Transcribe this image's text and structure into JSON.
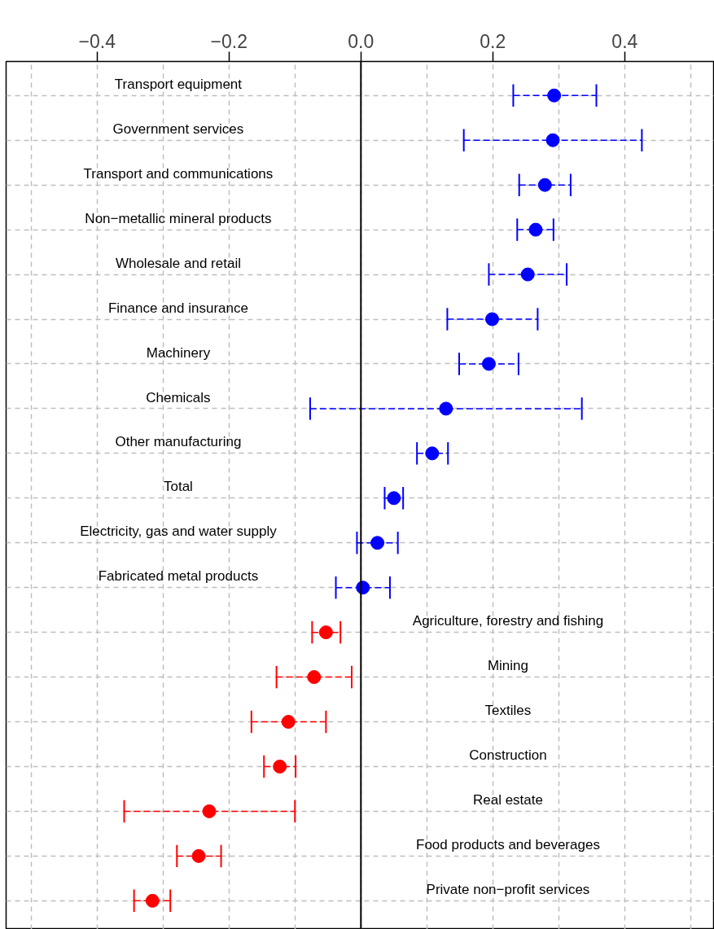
{
  "chart_data": {
    "type": "scatter",
    "orientation": "horizontal",
    "marker": "circle",
    "categories": [
      "Transport equipment",
      "Government services",
      "Transport and communications",
      "Non−metallic mineral products",
      "Wholesale and retail",
      "Finance and insurance",
      "Machinery",
      "Chemicals",
      "Other manufacturing",
      "Total",
      "Electricity, gas and water supply",
      "Fabricated metal products",
      "Agriculture, forestry and fishing",
      "Mining",
      "Textiles",
      "Construction",
      "Real estate",
      "Food products and beverages",
      "Private non−profit services"
    ],
    "values": [
      0.293,
      0.291,
      0.279,
      0.265,
      0.253,
      0.199,
      0.194,
      0.129,
      0.108,
      0.05,
      0.025,
      0.003,
      -0.053,
      -0.071,
      -0.11,
      -0.123,
      -0.23,
      -0.246,
      -0.316
    ],
    "errors": [
      [
        0.231,
        0.357
      ],
      [
        0.156,
        0.426
      ],
      [
        0.24,
        0.318
      ],
      [
        0.237,
        0.292
      ],
      [
        0.194,
        0.312
      ],
      [
        0.131,
        0.268
      ],
      [
        0.149,
        0.239
      ],
      [
        -0.077,
        0.335
      ],
      [
        0.085,
        0.132
      ],
      [
        0.036,
        0.064
      ],
      [
        -0.006,
        0.056
      ],
      [
        -0.038,
        0.044
      ],
      [
        -0.074,
        -0.031
      ],
      [
        -0.128,
        -0.014
      ],
      [
        -0.166,
        -0.053
      ],
      [
        -0.147,
        -0.099
      ],
      [
        -0.359,
        -0.1
      ],
      [
        -0.279,
        -0.212
      ],
      [
        -0.344,
        -0.289
      ]
    ],
    "colors": [
      "#0000ff",
      "#0000ff",
      "#0000ff",
      "#0000ff",
      "#0000ff",
      "#0000ff",
      "#0000ff",
      "#0000ff",
      "#0000ff",
      "#0000ff",
      "#0000ff",
      "#0000ff",
      "#ff0000",
      "#ff0000",
      "#ff0000",
      "#ff0000",
      "#ff0000",
      "#ff0000",
      "#ff0000"
    ],
    "xlim": [
      -0.538,
      0.536
    ],
    "xticks": [
      {
        "value": -0.5,
        "label": null
      },
      {
        "value": -0.4,
        "label": "−0.4"
      },
      {
        "value": -0.3,
        "label": null
      },
      {
        "value": -0.2,
        "label": "−0.2"
      },
      {
        "value": -0.1,
        "label": null
      },
      {
        "value": 0.0,
        "label": "0.0"
      },
      {
        "value": 0.1,
        "label": null
      },
      {
        "value": 0.2,
        "label": "0.2"
      },
      {
        "value": 0.3,
        "label": null
      },
      {
        "value": 0.4,
        "label": "0.4"
      },
      {
        "value": 0.5,
        "label": null
      }
    ],
    "ref_lines": [
      {
        "axis": "x",
        "value": 0,
        "color": "#000000",
        "line_style": "solid"
      }
    ],
    "grid": true
  }
}
